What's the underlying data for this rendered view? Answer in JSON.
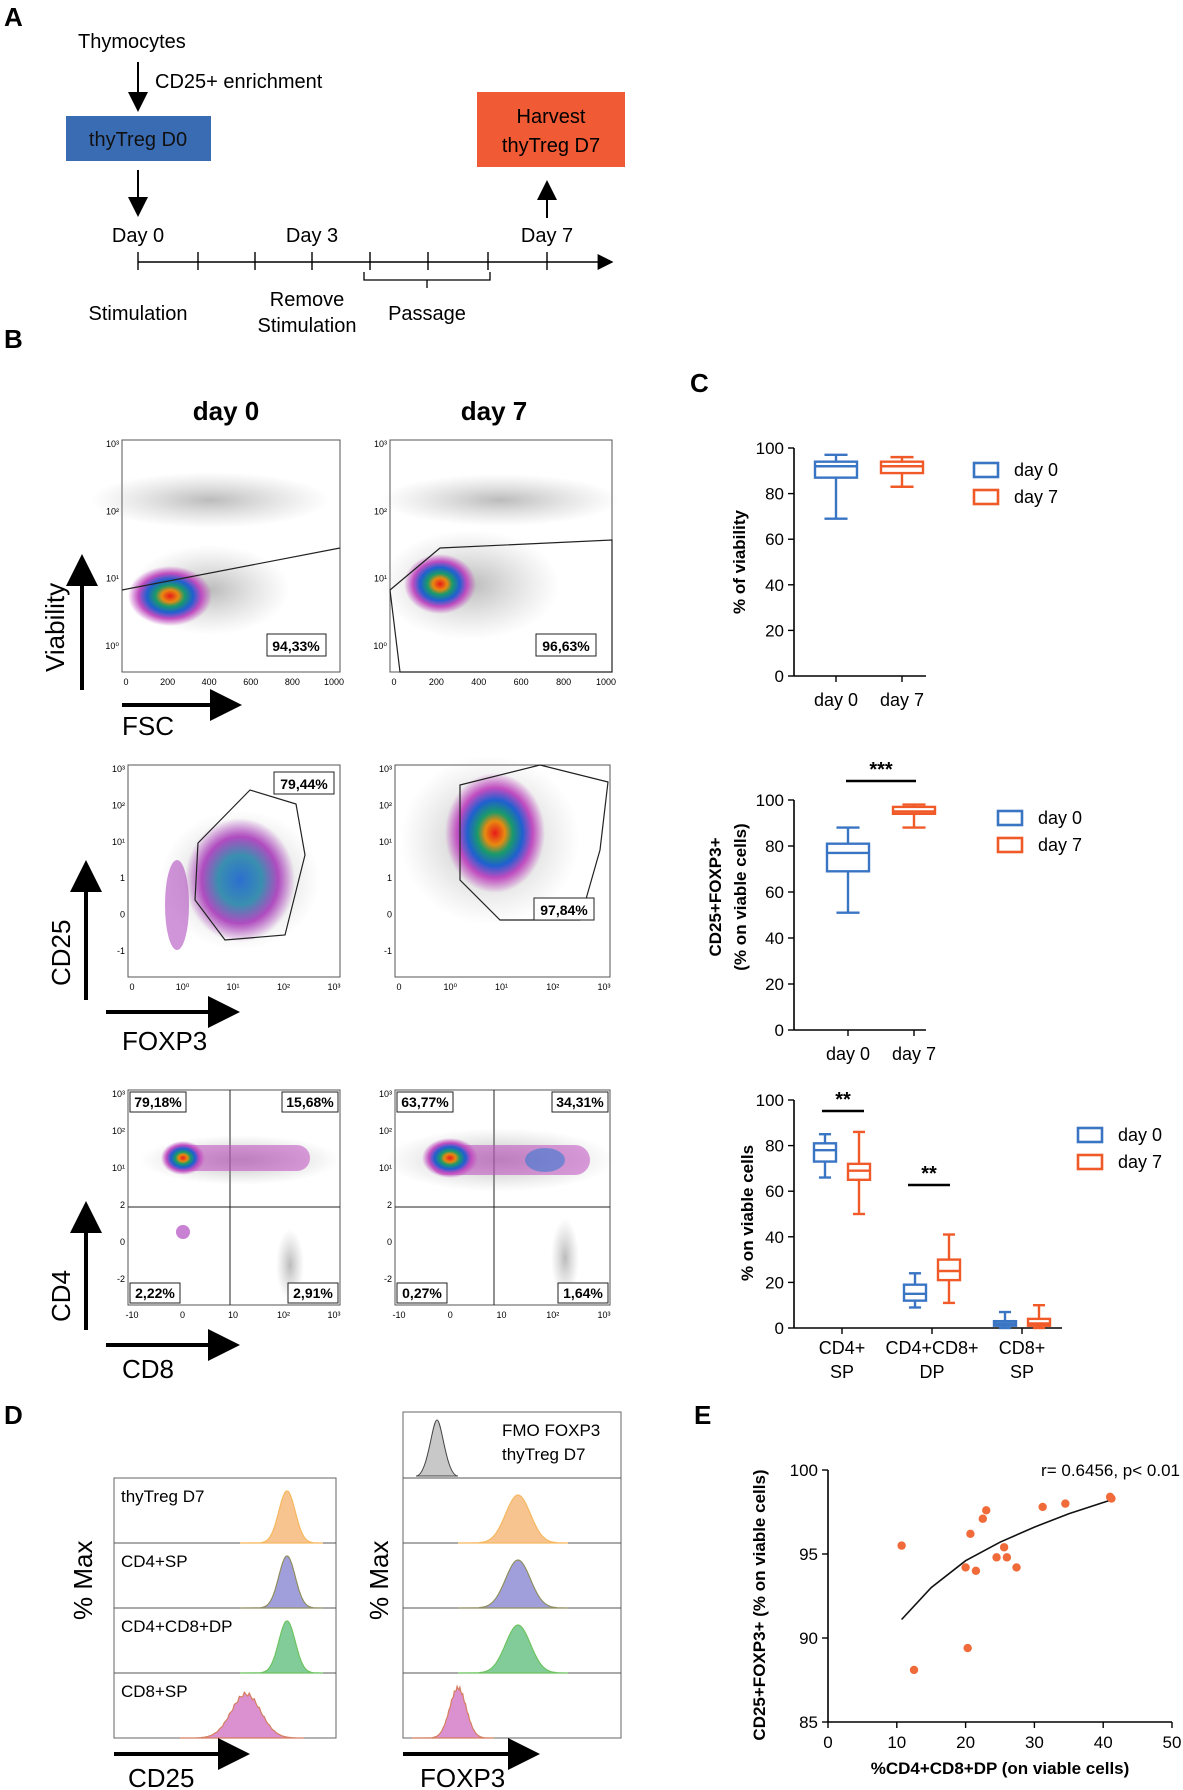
{
  "panels": {
    "A": "A",
    "B": "B",
    "C": "C",
    "D": "D",
    "E": "E"
  },
  "panel_a": {
    "thymocytes": "Thymocytes",
    "enrichment": "CD25+ enrichment",
    "d0_box": "thyTreg D0",
    "harvest_line1": "Harvest",
    "harvest_line2": "thyTreg D7",
    "day0": "Day 0",
    "day3": "Day 3",
    "day7": "Day 7",
    "stimulation": "Stimulation",
    "remove1": "Remove",
    "remove2": "Stimulation",
    "passage": "Passage",
    "colors": {
      "d0": "#3a6cb4",
      "d7": "#f05a35"
    }
  },
  "panel_b": {
    "col_day0": "day 0",
    "col_day7": "day 7",
    "rows": [
      {
        "ylabel": "Viability",
        "xlabel": "FSC",
        "yticks": [
          "10³",
          "10²",
          "10¹",
          "10⁰"
        ],
        "xticks": [
          "0",
          "200",
          "400",
          "600",
          "800",
          "1000"
        ],
        "day0_pct": [
          "94,33%"
        ],
        "day7_pct": [
          "96,63%"
        ]
      },
      {
        "ylabel": "CD25",
        "xlabel": "FOXP3",
        "yticks": [
          "10³",
          "10²",
          "10¹",
          "1",
          "0",
          "-1"
        ],
        "xticks": [
          "0",
          "10⁰",
          "10¹",
          "10²",
          "10³"
        ],
        "day0_pct": [
          "79,44%"
        ],
        "day7_pct": [
          "97,84%"
        ]
      },
      {
        "ylabel": "CD4",
        "xlabel": "CD8",
        "yticks": [
          "10³",
          "10²",
          "10¹",
          "2",
          "0",
          "-2"
        ],
        "xticks": [
          "-10",
          "0",
          "10",
          "10²",
          "10³"
        ],
        "day0_pct": [
          "79,18%",
          "15,68%",
          "2,22%",
          "2,91%"
        ],
        "day7_pct": [
          "63,77%",
          "34,31%",
          "0,27%",
          "1,64%"
        ]
      }
    ]
  },
  "chart_data": [
    {
      "type": "box",
      "ylabel": "% of viability",
      "ylim": [
        0,
        100
      ],
      "yticks": [
        "0",
        "20",
        "40",
        "60",
        "80",
        "100"
      ],
      "categories": [
        "day 0",
        "day 7"
      ],
      "legend": [
        "day 0",
        "day 7"
      ],
      "boxes": [
        {
          "name": "day 0",
          "min": 69,
          "q1": 87,
          "median": 92,
          "q3": 94,
          "max": 97,
          "color": "#3a75c4"
        },
        {
          "name": "day 7",
          "min": 83,
          "q1": 89,
          "median": 92,
          "q3": 94,
          "max": 96,
          "color": "#f05a28"
        }
      ]
    },
    {
      "type": "box",
      "ylabel1": "CD25+FOXP3+",
      "ylabel2": "(% on viable cells)",
      "ylim": [
        0,
        100
      ],
      "yticks": [
        "0",
        "20",
        "40",
        "60",
        "80",
        "100"
      ],
      "categories": [
        "day 0",
        "day 7"
      ],
      "legend": [
        "day 0",
        "day 7"
      ],
      "significance": "***",
      "boxes": [
        {
          "name": "day 0",
          "min": 51,
          "q1": 69,
          "median": 77,
          "q3": 81,
          "max": 88,
          "color": "#3a75c4"
        },
        {
          "name": "day 7",
          "min": 88,
          "q1": 94,
          "median": 95,
          "q3": 97,
          "max": 98,
          "color": "#f05a28"
        }
      ]
    },
    {
      "type": "box",
      "ylabel": "% on viable cells",
      "ylim": [
        0,
        100
      ],
      "yticks": [
        "0",
        "20",
        "40",
        "60",
        "80",
        "100"
      ],
      "categories": [
        [
          "CD4+",
          "SP"
        ],
        [
          "CD4+CD8+",
          "DP"
        ],
        [
          "CD8+",
          "SP"
        ]
      ],
      "legend": [
        "day 0",
        "day 7"
      ],
      "significance": [
        "**",
        "**"
      ],
      "groups": [
        {
          "d0": {
            "min": 66,
            "q1": 73,
            "median": 78,
            "q3": 81,
            "max": 85
          },
          "d7": {
            "min": 50,
            "q1": 65,
            "median": 69,
            "q3": 72,
            "max": 86
          }
        },
        {
          "d0": {
            "min": 9,
            "q1": 12,
            "median": 15,
            "q3": 19,
            "max": 24
          },
          "d7": {
            "min": 11,
            "q1": 21,
            "median": 25,
            "q3": 30,
            "max": 41
          }
        },
        {
          "d0": {
            "min": 0,
            "q1": 1,
            "median": 2,
            "q3": 3,
            "max": 7
          },
          "d7": {
            "min": 0,
            "q1": 1,
            "median": 2,
            "q3": 4,
            "max": 10
          }
        }
      ]
    },
    {
      "type": "scatter",
      "xlabel": "%CD4+CD8+DP (on viable cells)",
      "ylabel": "CD25+FOXP3+ (% on viable cells)",
      "xlim": [
        0,
        50
      ],
      "ylim": [
        85,
        100
      ],
      "xticks": [
        "0",
        "10",
        "20",
        "30",
        "40",
        "50"
      ],
      "yticks": [
        "85",
        "90",
        "95",
        "100"
      ],
      "annotation": "r= 0.6456, p< 0.01",
      "points": [
        [
          10.7,
          95.5
        ],
        [
          12.5,
          88.1
        ],
        [
          20,
          94.2
        ],
        [
          20.3,
          89.4
        ],
        [
          20.7,
          96.2
        ],
        [
          21.5,
          94
        ],
        [
          22.5,
          97.1
        ],
        [
          23,
          97.6
        ],
        [
          24.5,
          94.8
        ],
        [
          25.6,
          95.4
        ],
        [
          26,
          94.8
        ],
        [
          27.4,
          94.2
        ],
        [
          31.2,
          97.8
        ],
        [
          34.5,
          98
        ],
        [
          41,
          98.4
        ],
        [
          41.2,
          98.3
        ]
      ],
      "fit": [
        [
          10.7,
          91.1
        ],
        [
          15,
          93.0
        ],
        [
          20,
          94.6
        ],
        [
          25,
          95.7
        ],
        [
          30,
          96.6
        ],
        [
          35,
          97.4
        ],
        [
          41,
          98.2
        ]
      ],
      "color": "#f06a3a"
    }
  ],
  "panel_d": {
    "left_xlabel": "CD25",
    "right_xlabel": "FOXP3",
    "ylabel": "% Max",
    "fmo_line1": "FMO FOXP3",
    "fmo_line2": "thyTreg D7",
    "tracks": [
      "thyTreg D7",
      "CD4+SP",
      "CD4+CD8+DP",
      "CD8+SP"
    ],
    "colors": [
      "#f6b87a",
      "#8f8ed6",
      "#6cc387",
      "#d57ec7"
    ]
  }
}
